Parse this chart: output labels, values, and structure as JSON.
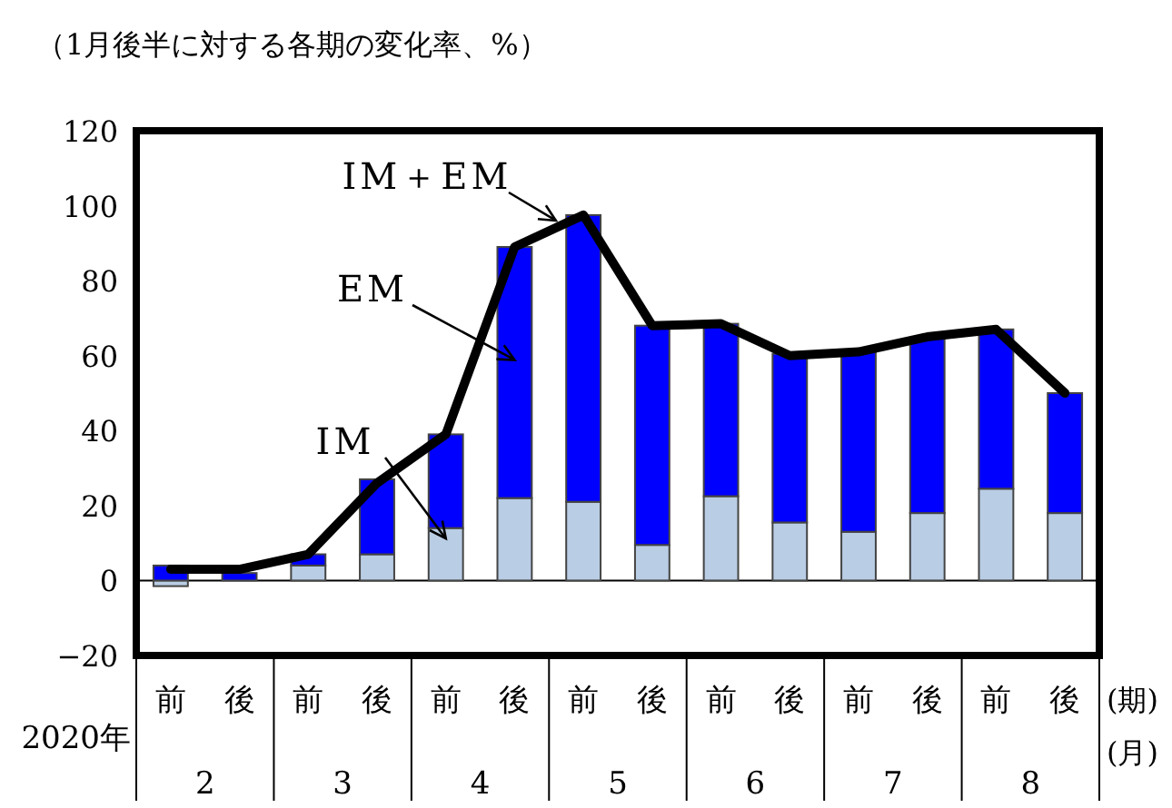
{
  "chart_data": {
    "type": "bar",
    "stacked": true,
    "title": "（1月後半に対する各期の変化率、%）",
    "categories": [
      "前",
      "後",
      "前",
      "後",
      "前",
      "後",
      "前",
      "後",
      "前",
      "後",
      "前",
      "後",
      "前",
      "後"
    ],
    "series": [
      {
        "name": "IM",
        "color": "#b9cde5",
        "values": [
          -1.5,
          null,
          4,
          7,
          14,
          22,
          21,
          9.5,
          22.5,
          15.5,
          13,
          18,
          24.5,
          18
        ]
      },
      {
        "name": "EM",
        "color": "#0000ff",
        "values": [
          4,
          2,
          3,
          20,
          25,
          67,
          76.5,
          58.5,
          46,
          45,
          48,
          46.5,
          42.5,
          32
        ]
      },
      {
        "name": "IM＋EM",
        "type": "line",
        "color": "#000000",
        "values": [
          3,
          3,
          7,
          26,
          39,
          89,
          97.5,
          68,
          68.5,
          60,
          61,
          65,
          67,
          50
        ]
      }
    ],
    "ylim": [
      -20,
      120
    ],
    "yticks": [
      -20,
      0,
      20,
      40,
      60,
      80,
      100,
      120
    ],
    "annotations": [
      "2020年",
      "(期)",
      "(月)",
      "2",
      "3",
      "4",
      "5",
      "6",
      "7",
      "8"
    ]
  }
}
